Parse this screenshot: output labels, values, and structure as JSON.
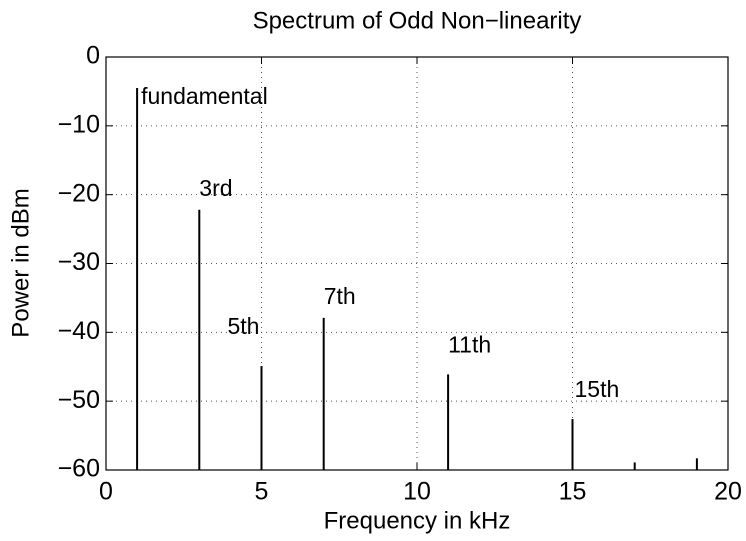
{
  "chart_data": {
    "type": "stem",
    "title": "Spectrum of Odd Non−linearity",
    "xlabel": "Frequency in kHz",
    "ylabel": "Power in dBm",
    "x": [
      1,
      3,
      5,
      7,
      11,
      15,
      17,
      19
    ],
    "values": [
      -4.5,
      -22.2,
      -44.9,
      -37.9,
      -46.1,
      -52.6,
      -58.9,
      -58.3
    ],
    "annotations": [
      {
        "text": "fundamental",
        "x": 1
      },
      {
        "text": "3rd",
        "x": 3
      },
      {
        "text": "5th",
        "x": 5
      },
      {
        "text": "7th",
        "x": 7
      },
      {
        "text": "11th",
        "x": 11
      },
      {
        "text": "15th",
        "x": 15
      }
    ],
    "color": "#000000",
    "xlim": [
      0,
      20
    ],
    "xticks": [
      0,
      5,
      10,
      15,
      20
    ],
    "ylim": [
      -60,
      0
    ],
    "yticks": [
      {
        "value": -60,
        "label": "−60"
      },
      {
        "value": -50,
        "label": "−50"
      },
      {
        "value": -40,
        "label": "−40"
      },
      {
        "value": -30,
        "label": "−30"
      },
      {
        "value": -20,
        "label": "−20"
      },
      {
        "value": -10,
        "label": "−10"
      },
      0
    ],
    "grid": true
  }
}
